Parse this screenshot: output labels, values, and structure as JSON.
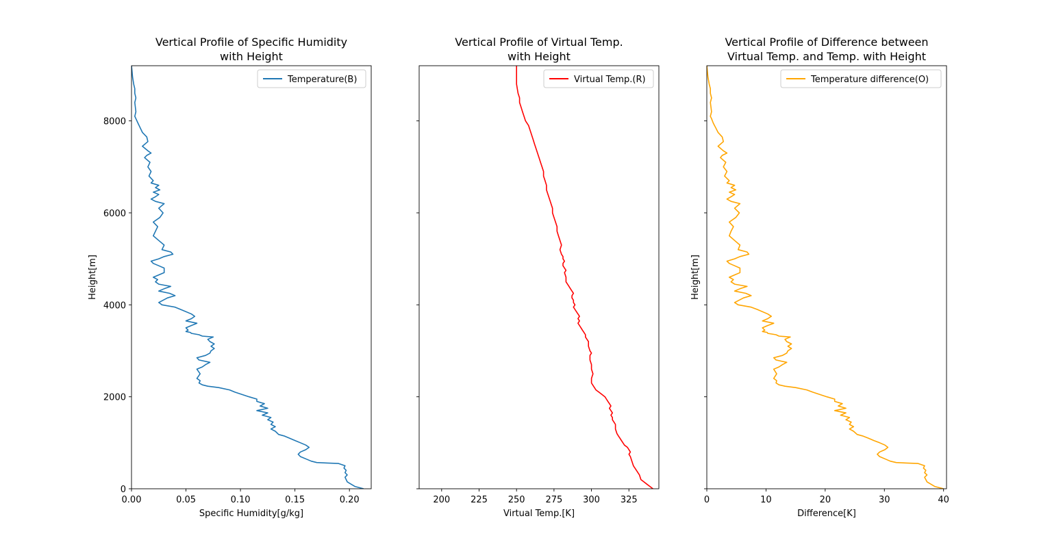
{
  "chart_data": [
    {
      "type": "line",
      "title_lines": [
        "Vertical Profile of Specific Humidity",
        "with Height"
      ],
      "xlabel": "Specific Humidity[g/kg]",
      "ylabel": "Height[m]",
      "xlim": [
        0,
        0.22
      ],
      "ylim": [
        0,
        9200
      ],
      "xticks": [
        0.0,
        0.05,
        0.1,
        0.15,
        0.2
      ],
      "xtick_labels": [
        "0.00",
        "0.05",
        "0.10",
        "0.15",
        "0.20"
      ],
      "yticks": [
        0,
        2000,
        4000,
        6000,
        8000
      ],
      "ytick_labels": [
        "0",
        "2000",
        "4000",
        "6000",
        "8000"
      ],
      "show_y_labels": true,
      "legend_position": "upper right",
      "series": [
        {
          "name": "Temperature(B)",
          "color": "#1f77b4",
          "x": [
            0.213,
            0.205,
            0.198,
            0.196,
            0.198,
            0.196,
            0.197,
            0.195,
            0.196,
            0.19,
            0.18,
            0.17,
            0.165,
            0.16,
            0.155,
            0.153,
            0.155,
            0.16,
            0.163,
            0.16,
            0.155,
            0.15,
            0.145,
            0.14,
            0.135,
            0.132,
            0.128,
            0.132,
            0.128,
            0.13,
            0.125,
            0.128,
            0.12,
            0.125,
            0.115,
            0.125,
            0.118,
            0.122,
            0.115,
            0.115,
            0.108,
            0.095,
            0.09,
            0.08,
            0.07,
            0.065,
            0.062,
            0.063,
            0.06,
            0.063,
            0.06,
            0.065,
            0.068,
            0.072,
            0.062,
            0.06,
            0.068,
            0.072,
            0.073,
            0.076,
            0.073,
            0.076,
            0.072,
            0.07,
            0.075,
            0.065,
            0.062,
            0.055,
            0.054,
            0.05,
            0.052,
            0.05,
            0.055,
            0.06,
            0.05,
            0.055,
            0.058,
            0.055,
            0.045,
            0.04,
            0.028,
            0.025,
            0.033,
            0.04,
            0.035,
            0.025,
            0.03,
            0.036,
            0.025,
            0.022,
            0.024,
            0.02,
            0.025,
            0.03,
            0.03,
            0.025,
            0.02,
            0.018,
            0.025,
            0.03,
            0.038,
            0.036,
            0.028,
            0.03,
            0.025,
            0.02,
            0.022,
            0.024,
            0.02,
            0.026,
            0.029,
            0.025,
            0.03,
            0.022,
            0.018,
            0.022,
            0.025,
            0.02,
            0.026,
            0.022,
            0.025,
            0.018,
            0.02,
            0.016,
            0.018,
            0.015,
            0.017,
            0.012,
            0.014,
            0.018,
            0.015,
            0.01,
            0.015,
            0.014,
            0.01,
            0.008,
            0.006,
            0.004,
            0.003,
            0.004,
            0.003,
            0.004,
            0.003,
            0.003,
            0.002,
            0.001,
            0.0
          ],
          "y": [
            0,
            50,
            150,
            250,
            300,
            350,
            400,
            450,
            500,
            550,
            560,
            570,
            600,
            650,
            700,
            750,
            800,
            850,
            900,
            950,
            1000,
            1050,
            1100,
            1150,
            1180,
            1250,
            1300,
            1350,
            1400,
            1450,
            1500,
            1550,
            1600,
            1650,
            1700,
            1750,
            1800,
            1850,
            1900,
            1950,
            2000,
            2100,
            2150,
            2200,
            2230,
            2260,
            2300,
            2350,
            2400,
            2500,
            2600,
            2650,
            2700,
            2750,
            2800,
            2850,
            2900,
            2950,
            3000,
            3050,
            3100,
            3150,
            3200,
            3250,
            3300,
            3320,
            3350,
            3380,
            3400,
            3420,
            3450,
            3500,
            3550,
            3600,
            3650,
            3700,
            3750,
            3800,
            3900,
            3950,
            4000,
            4050,
            4150,
            4200,
            4250,
            4300,
            4350,
            4400,
            4450,
            4500,
            4550,
            4600,
            4650,
            4700,
            4800,
            4850,
            4900,
            4950,
            5000,
            5050,
            5100,
            5150,
            5200,
            5300,
            5400,
            5500,
            5600,
            5700,
            5800,
            5900,
            6000,
            6100,
            6200,
            6250,
            6300,
            6350,
            6400,
            6450,
            6500,
            6550,
            6600,
            6650,
            6700,
            6800,
            6900,
            7000,
            7100,
            7200,
            7250,
            7300,
            7350,
            7450,
            7550,
            7650,
            7750,
            7850,
            7950,
            8050,
            8100,
            8200,
            8400,
            8500,
            8600,
            8700,
            8800,
            8950,
            9200
          ]
        }
      ]
    },
    {
      "type": "line",
      "title_lines": [
        "Vertical Profile of Virtual Temp.",
        "with Height"
      ],
      "xlabel": "Virtual Temp.[K]",
      "ylabel": "",
      "xlim": [
        185,
        345
      ],
      "ylim": [
        0,
        9200
      ],
      "xticks": [
        200,
        225,
        250,
        275,
        300,
        325
      ],
      "xtick_labels": [
        "200",
        "225",
        "250",
        "275",
        "300",
        "325"
      ],
      "yticks": [
        0,
        2000,
        4000,
        6000,
        8000
      ],
      "ytick_labels": [],
      "show_y_labels": false,
      "legend_position": "upper right",
      "series": [
        {
          "name": "Virtual Temp.(R)",
          "color": "#ff0000",
          "x": [
            341,
            339,
            337,
            335,
            333,
            332,
            330,
            328,
            327,
            326,
            325,
            326,
            325,
            324,
            322,
            321,
            320,
            319,
            318,
            317,
            316,
            316,
            315,
            314,
            314,
            313,
            314,
            313,
            312,
            313,
            312,
            311,
            310,
            309,
            307,
            305,
            303,
            302,
            301,
            300,
            300,
            301,
            300,
            300,
            299,
            299,
            300,
            299,
            298,
            298,
            297,
            296,
            296,
            295,
            294,
            293,
            292,
            291,
            292,
            291,
            292,
            291,
            290,
            289,
            288,
            289,
            288,
            288,
            287,
            287,
            288,
            287,
            286,
            285,
            284,
            283,
            283,
            282,
            283,
            282,
            281,
            281,
            282,
            281,
            281,
            280,
            279,
            280,
            279,
            278,
            277,
            277,
            276,
            275,
            274,
            274,
            273,
            272,
            271,
            270,
            270,
            269,
            268,
            268,
            267,
            266,
            265,
            264,
            263,
            262,
            261,
            260,
            259,
            258,
            256,
            255,
            254,
            253,
            252,
            252,
            251,
            250,
            250
          ],
          "y": [
            0,
            50,
            100,
            150,
            200,
            300,
            400,
            500,
            600,
            700,
            750,
            800,
            850,
            900,
            950,
            1000,
            1050,
            1100,
            1150,
            1200,
            1300,
            1400,
            1450,
            1500,
            1550,
            1600,
            1650,
            1700,
            1750,
            1800,
            1850,
            1900,
            1950,
            2000,
            2050,
            2100,
            2150,
            2200,
            2250,
            2300,
            2400,
            2500,
            2600,
            2700,
            2800,
            2900,
            2950,
            3000,
            3100,
            3200,
            3250,
            3300,
            3350,
            3400,
            3450,
            3500,
            3550,
            3600,
            3650,
            3700,
            3750,
            3800,
            3850,
            3900,
            3950,
            4000,
            4050,
            4100,
            4150,
            4200,
            4250,
            4300,
            4350,
            4400,
            4450,
            4500,
            4600,
            4700,
            4750,
            4800,
            4850,
            4900,
            4950,
            5000,
            5050,
            5100,
            5200,
            5300,
            5400,
            5500,
            5600,
            5700,
            5800,
            5900,
            6000,
            6100,
            6200,
            6300,
            6400,
            6500,
            6600,
            6700,
            6800,
            6900,
            7000,
            7100,
            7200,
            7300,
            7400,
            7500,
            7600,
            7700,
            7800,
            7900,
            8000,
            8100,
            8200,
            8300,
            8400,
            8500,
            8600,
            8800,
            9200
          ]
        }
      ]
    },
    {
      "type": "line",
      "title_lines": [
        "Vertical Profile of Difference between",
        "Virtual Temp. and Temp. with Height"
      ],
      "xlabel": "Difference[K]",
      "ylabel": "Height[m]",
      "xlim": [
        0,
        40.5
      ],
      "ylim": [
        0,
        9200
      ],
      "xticks": [
        0,
        10,
        20,
        30,
        40
      ],
      "xtick_labels": [
        "0",
        "10",
        "20",
        "30",
        "40"
      ],
      "yticks": [
        0,
        2000,
        4000,
        6000,
        8000
      ],
      "ytick_labels": [],
      "show_y_labels": false,
      "legend_position": "upper right",
      "series": [
        {
          "name": "Temperature difference(O)",
          "color": "#ffa500",
          "x": [
            40.0,
            38.5,
            37.2,
            36.8,
            37.2,
            36.8,
            37.0,
            36.6,
            36.8,
            35.7,
            33.8,
            32.0,
            31.0,
            30.1,
            29.2,
            28.8,
            29.2,
            30.1,
            30.6,
            30.1,
            29.2,
            28.2,
            27.3,
            26.3,
            25.4,
            24.8,
            24.1,
            24.8,
            24.1,
            24.4,
            23.5,
            24.1,
            22.6,
            23.5,
            21.6,
            23.5,
            22.2,
            22.9,
            21.6,
            21.6,
            20.3,
            17.9,
            16.9,
            15.0,
            13.2,
            12.2,
            11.7,
            11.8,
            11.3,
            11.8,
            11.3,
            12.2,
            12.8,
            13.5,
            11.7,
            11.3,
            12.8,
            13.5,
            13.7,
            14.3,
            13.7,
            14.3,
            13.5,
            13.2,
            14.1,
            12.2,
            11.7,
            10.3,
            10.2,
            9.4,
            9.8,
            9.4,
            10.3,
            11.3,
            9.4,
            10.3,
            10.9,
            10.3,
            8.5,
            7.5,
            5.3,
            4.7,
            6.2,
            7.5,
            6.6,
            4.7,
            5.6,
            6.8,
            4.7,
            4.1,
            4.5,
            3.8,
            4.7,
            5.6,
            5.6,
            4.7,
            3.8,
            3.4,
            4.7,
            5.6,
            7.1,
            6.8,
            5.3,
            5.6,
            4.7,
            3.8,
            4.1,
            4.5,
            3.8,
            4.9,
            5.5,
            4.7,
            5.6,
            4.1,
            3.4,
            4.1,
            4.7,
            3.8,
            4.9,
            4.1,
            4.7,
            3.4,
            3.8,
            3.0,
            3.4,
            2.8,
            3.2,
            2.3,
            2.6,
            3.4,
            2.8,
            1.9,
            2.8,
            2.6,
            1.9,
            1.5,
            1.1,
            0.8,
            0.6,
            0.8,
            0.6,
            0.8,
            0.6,
            0.6,
            0.4,
            0.2,
            0.0
          ],
          "y": [
            0,
            50,
            150,
            250,
            300,
            350,
            400,
            450,
            500,
            550,
            560,
            570,
            600,
            650,
            700,
            750,
            800,
            850,
            900,
            950,
            1000,
            1050,
            1100,
            1150,
            1180,
            1250,
            1300,
            1350,
            1400,
            1450,
            1500,
            1550,
            1600,
            1650,
            1700,
            1750,
            1800,
            1850,
            1900,
            1950,
            2000,
            2100,
            2150,
            2200,
            2230,
            2260,
            2300,
            2350,
            2400,
            2500,
            2600,
            2650,
            2700,
            2750,
            2800,
            2850,
            2900,
            2950,
            3000,
            3050,
            3100,
            3150,
            3200,
            3250,
            3300,
            3320,
            3350,
            3380,
            3400,
            3420,
            3450,
            3500,
            3550,
            3600,
            3650,
            3700,
            3750,
            3800,
            3900,
            3950,
            4000,
            4050,
            4150,
            4200,
            4250,
            4300,
            4350,
            4400,
            4450,
            4500,
            4550,
            4600,
            4650,
            4700,
            4800,
            4850,
            4900,
            4950,
            5000,
            5050,
            5100,
            5150,
            5200,
            5300,
            5400,
            5500,
            5600,
            5700,
            5800,
            5900,
            6000,
            6100,
            6200,
            6250,
            6300,
            6350,
            6400,
            6450,
            6500,
            6550,
            6600,
            6650,
            6700,
            6800,
            6900,
            7000,
            7100,
            7200,
            7250,
            7300,
            7350,
            7450,
            7550,
            7650,
            7750,
            7850,
            7950,
            8050,
            8100,
            8200,
            8400,
            8500,
            8600,
            8700,
            8800,
            8950,
            9200
          ]
        }
      ]
    }
  ]
}
